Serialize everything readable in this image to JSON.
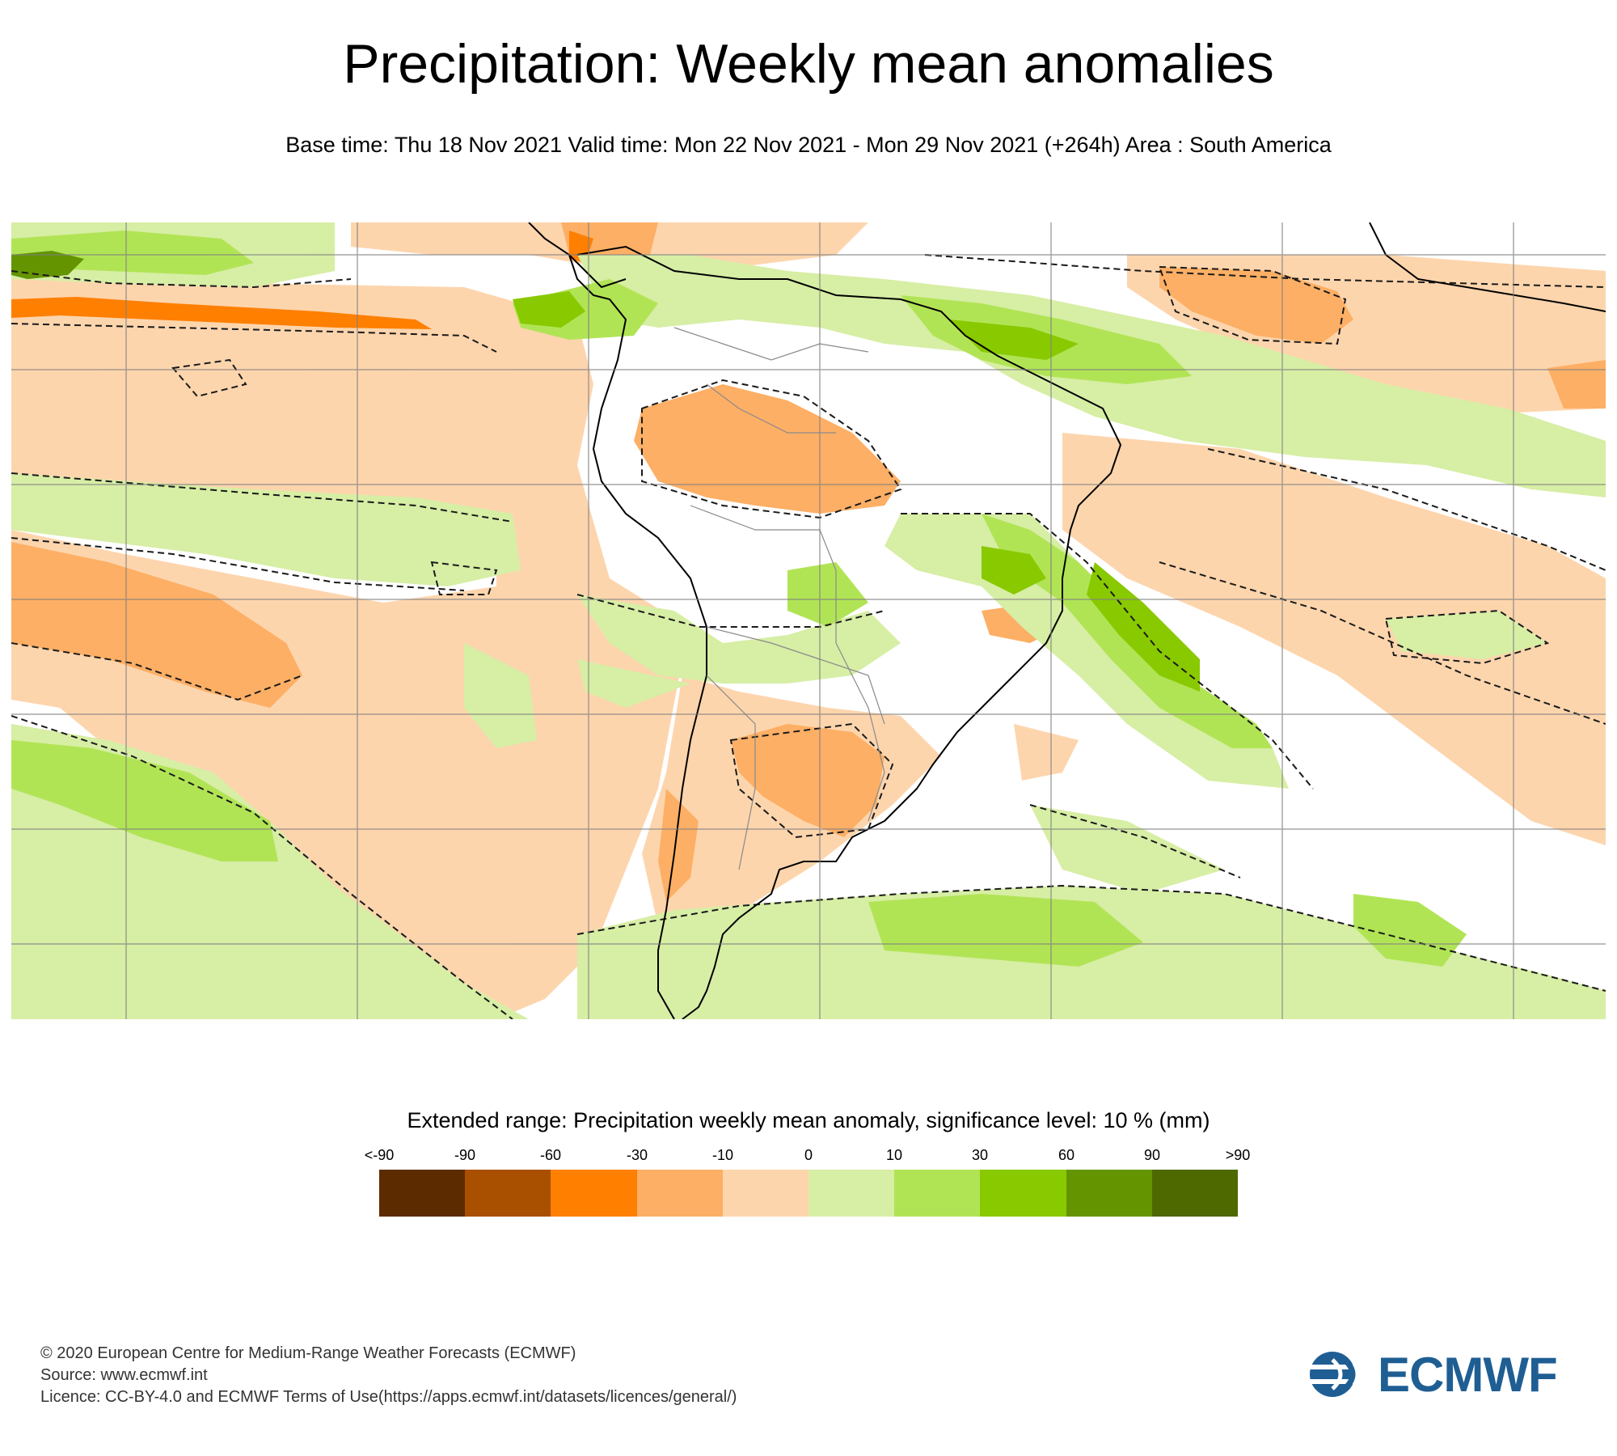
{
  "header": {
    "title": "Precipitation: Weekly mean anomalies",
    "subtitle": "Base time: Thu 18 Nov 2021 Valid time: Mon 22 Nov 2021 - Mon 29 Nov 2021 (+264h) Area : South America"
  },
  "map": {
    "region": "South America",
    "projection": "lat-lon",
    "lon_range": [
      -120,
      20
    ],
    "lat_range": [
      15,
      -55
    ]
  },
  "legend": {
    "title": "Extended range: Precipitation weekly mean anomaly, significance level: 10 % (mm)",
    "ticks": [
      "<-90",
      "-90",
      "-60",
      "-30",
      "-10",
      "0",
      "10",
      "30",
      "60",
      "90",
      ">90"
    ],
    "colors": [
      "#5c2c00",
      "#a94f00",
      "#ff7f00",
      "#fdaf65",
      "#fdd5ad",
      "#d7eea5",
      "#b1e455",
      "#89c900",
      "#649400",
      "#4d6900"
    ]
  },
  "footer": {
    "copyright": "© 2020 European Centre for Medium-Range Weather Forecasts (ECMWF)",
    "source": "Source: www.ecmwf.int",
    "licence": "Licence: CC-BY-4.0 and ECMWF Terms of Use(https://apps.ecmwf.int/datasets/licences/general/)"
  },
  "logo": {
    "text": "ECMWF",
    "color": "#1f5e93"
  }
}
